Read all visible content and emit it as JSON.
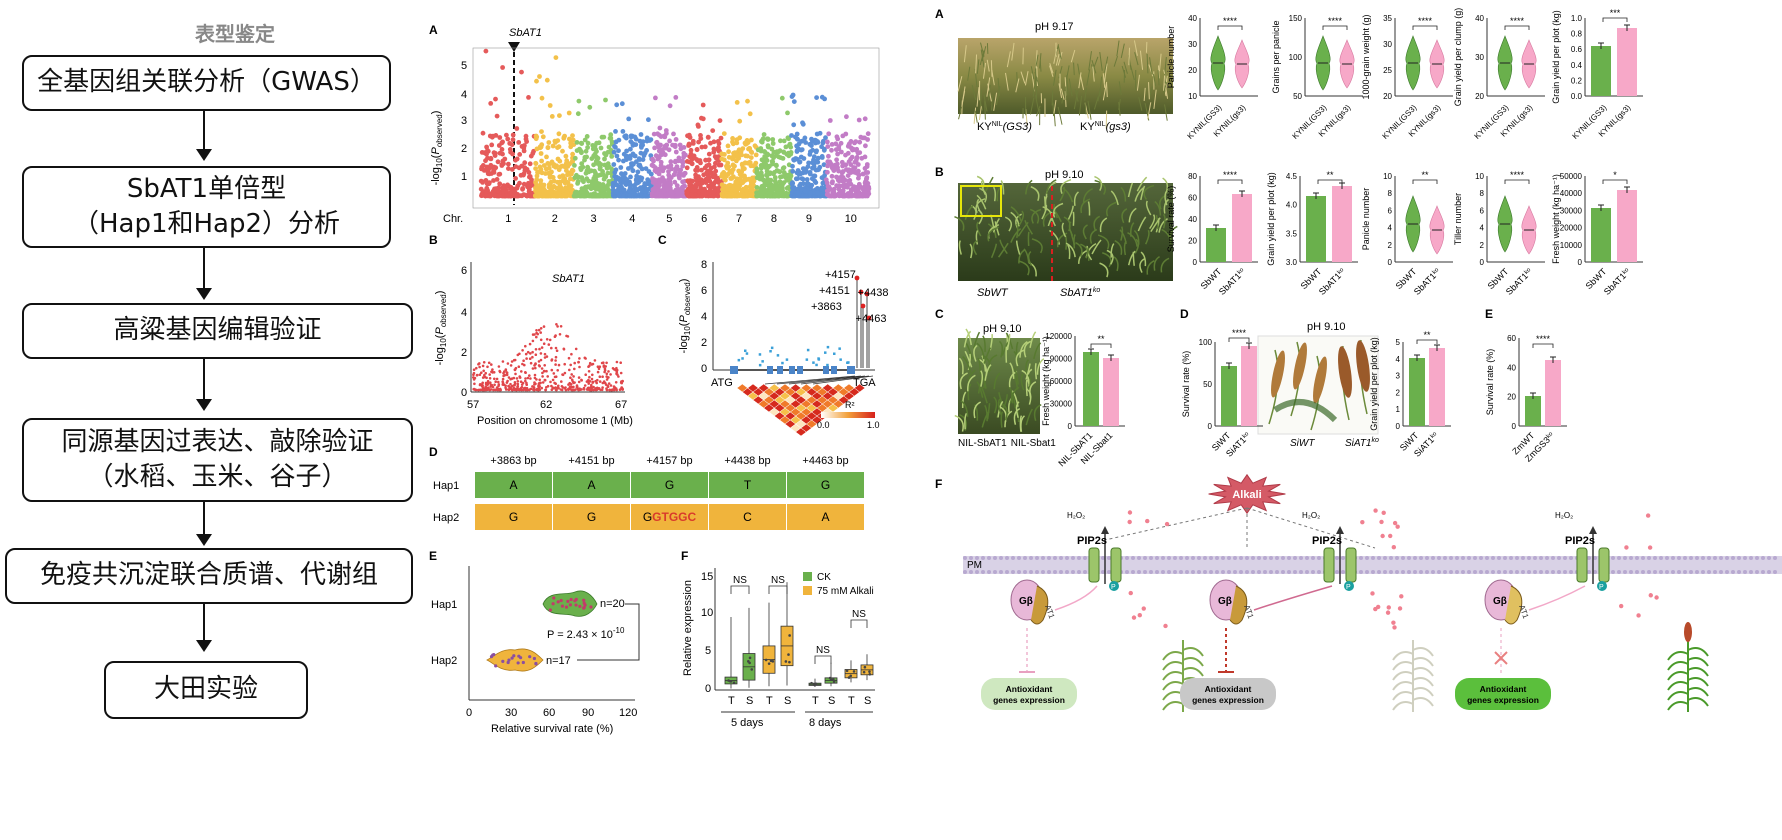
{
  "flow": {
    "title": "表型鉴定",
    "steps": [
      {
        "line1": "全基因组关联分析（GWAS）",
        "line2": ""
      },
      {
        "line1": "SbAT1单倍型",
        "line2": "（Hap1和Hap2）分析"
      },
      {
        "line1": "高粱基因编辑验证",
        "line2": ""
      },
      {
        "line1": "同源基因过表达、敲除验证",
        "line2": "（水稻、玉米、谷子）"
      },
      {
        "line1": "免疫共沉淀联合质谱、代谢组",
        "line2": ""
      },
      {
        "line1": "大田实验",
        "line2": ""
      }
    ]
  },
  "mid": {
    "A": {
      "letter": "A",
      "gene": "SbAT1",
      "chr_label": "Chr.",
      "chromosomes": [
        "1",
        "2",
        "3",
        "4",
        "5",
        "6",
        "7",
        "8",
        "9",
        "10"
      ],
      "yticks": [
        "1",
        "2",
        "3",
        "4",
        "5"
      ]
    },
    "B": {
      "letter": "B",
      "gene": "SbAT1",
      "xlabel": "Position on chromosome 1 (Mb)",
      "xticks": [
        "57",
        "62",
        "67"
      ],
      "yticks": [
        "0",
        "2",
        "4",
        "6"
      ]
    },
    "C": {
      "letter": "C",
      "sites": [
        "+4157",
        "+4151",
        "+3863",
        "+4438",
        "+4463"
      ],
      "atg": "ATG",
      "tga": "TGA",
      "r2": "R²",
      "r2_min": "0.0",
      "r2_max": "1.0",
      "yticks": [
        "0",
        "2",
        "4",
        "6",
        "8"
      ]
    },
    "D": {
      "letter": "D",
      "positions": [
        "+3863 bp",
        "+4151 bp",
        "+4157 bp",
        "+4438 bp",
        "+4463 bp"
      ],
      "hap1": {
        "name": "Hap1",
        "alleles": [
          "A",
          "A",
          "G",
          "T",
          "G"
        ]
      },
      "hap2": {
        "name": "Hap2",
        "alleles": [
          "G",
          "G",
          "G",
          "C",
          "A"
        ],
        "insert": "GTGGC"
      }
    },
    "E": {
      "letter": "E",
      "hap1": "Hap1",
      "hap2": "Hap2",
      "n1": "n=20",
      "n2": "n=17",
      "pvalue": "P = 2.43 × 10",
      "pexp": "-10",
      "xlabel": "Relative survival rate (%)",
      "xticks": [
        "0",
        "30",
        "60",
        "90",
        "120"
      ]
    },
    "F": {
      "letter": "F",
      "ylabel": "Relative expression",
      "legend": [
        "CK",
        "75 mM Alkali"
      ],
      "groups": [
        "5 days",
        "8 days"
      ],
      "xt": [
        "T",
        "S",
        "T",
        "S",
        "T",
        "S",
        "T",
        "S"
      ],
      "yticks": [
        "0",
        "5",
        "10",
        "15"
      ],
      "ns": "NS"
    }
  },
  "right": {
    "A": {
      "letter": "A",
      "photo_title": "pH 9.17",
      "g1": "KY",
      "g1sup": "NIL",
      "g1gene": "(GS3)",
      "g2gene": "(gs3)",
      "plots": [
        "Panicle number",
        "Grains per panicle",
        "1000-grain weight (g)",
        "Grain yield per clump (g)",
        "Grain yield per plot (kg)"
      ],
      "stars": [
        "****",
        "****",
        "****",
        "****",
        "***"
      ]
    },
    "B": {
      "letter": "B",
      "photo_title": "pH 9.10",
      "g1": "SbWT",
      "g2": "SbAT1",
      "g2sup": "ko",
      "plots": [
        "Survival rate (%)",
        "Grain yield per plot (kg)",
        "Panicle number",
        "Tiller number",
        "Fresh weight (kg ha⁻¹)"
      ],
      "stars": [
        "****",
        "**",
        "**",
        "****",
        "*"
      ]
    },
    "C": {
      "letter": "C",
      "photo_title": "pH 9.10",
      "g1": "NIL-SbAT1",
      "g2": "NIL-Sbat1",
      "ylabel": "Fresh weight (kg ha⁻¹)",
      "stars": "**"
    },
    "D": {
      "letter": "D",
      "photo_title": "pH 9.10",
      "g1": "SiWT",
      "g2": "SiAT1",
      "g2sup": "ko",
      "ylabel1": "Survival rate (%)",
      "ylabel2": "Grain yield per plot (kg)",
      "stars1": "****",
      "stars2": "**"
    },
    "E": {
      "letter": "E",
      "g1": "ZmWT",
      "g2": "ZmGS3",
      "g2sup": "ko",
      "ylabel": "Survival rate (%)",
      "stars": "****"
    },
    "F": {
      "letter": "F",
      "alkali": "Alkali",
      "pm": "PM",
      "pip": "PIP2s",
      "h2o2": "H₂O₂",
      "gb": "Gβ",
      "at1": "AT1",
      "p": "P",
      "antioxidant1": "Antioxidant",
      "antioxidant2": "genes expression"
    }
  },
  "colors": {
    "green": "#6ab04c",
    "pink": "#f7a8c8",
    "orange": "#f0b43c",
    "red": "#d93b2b"
  }
}
